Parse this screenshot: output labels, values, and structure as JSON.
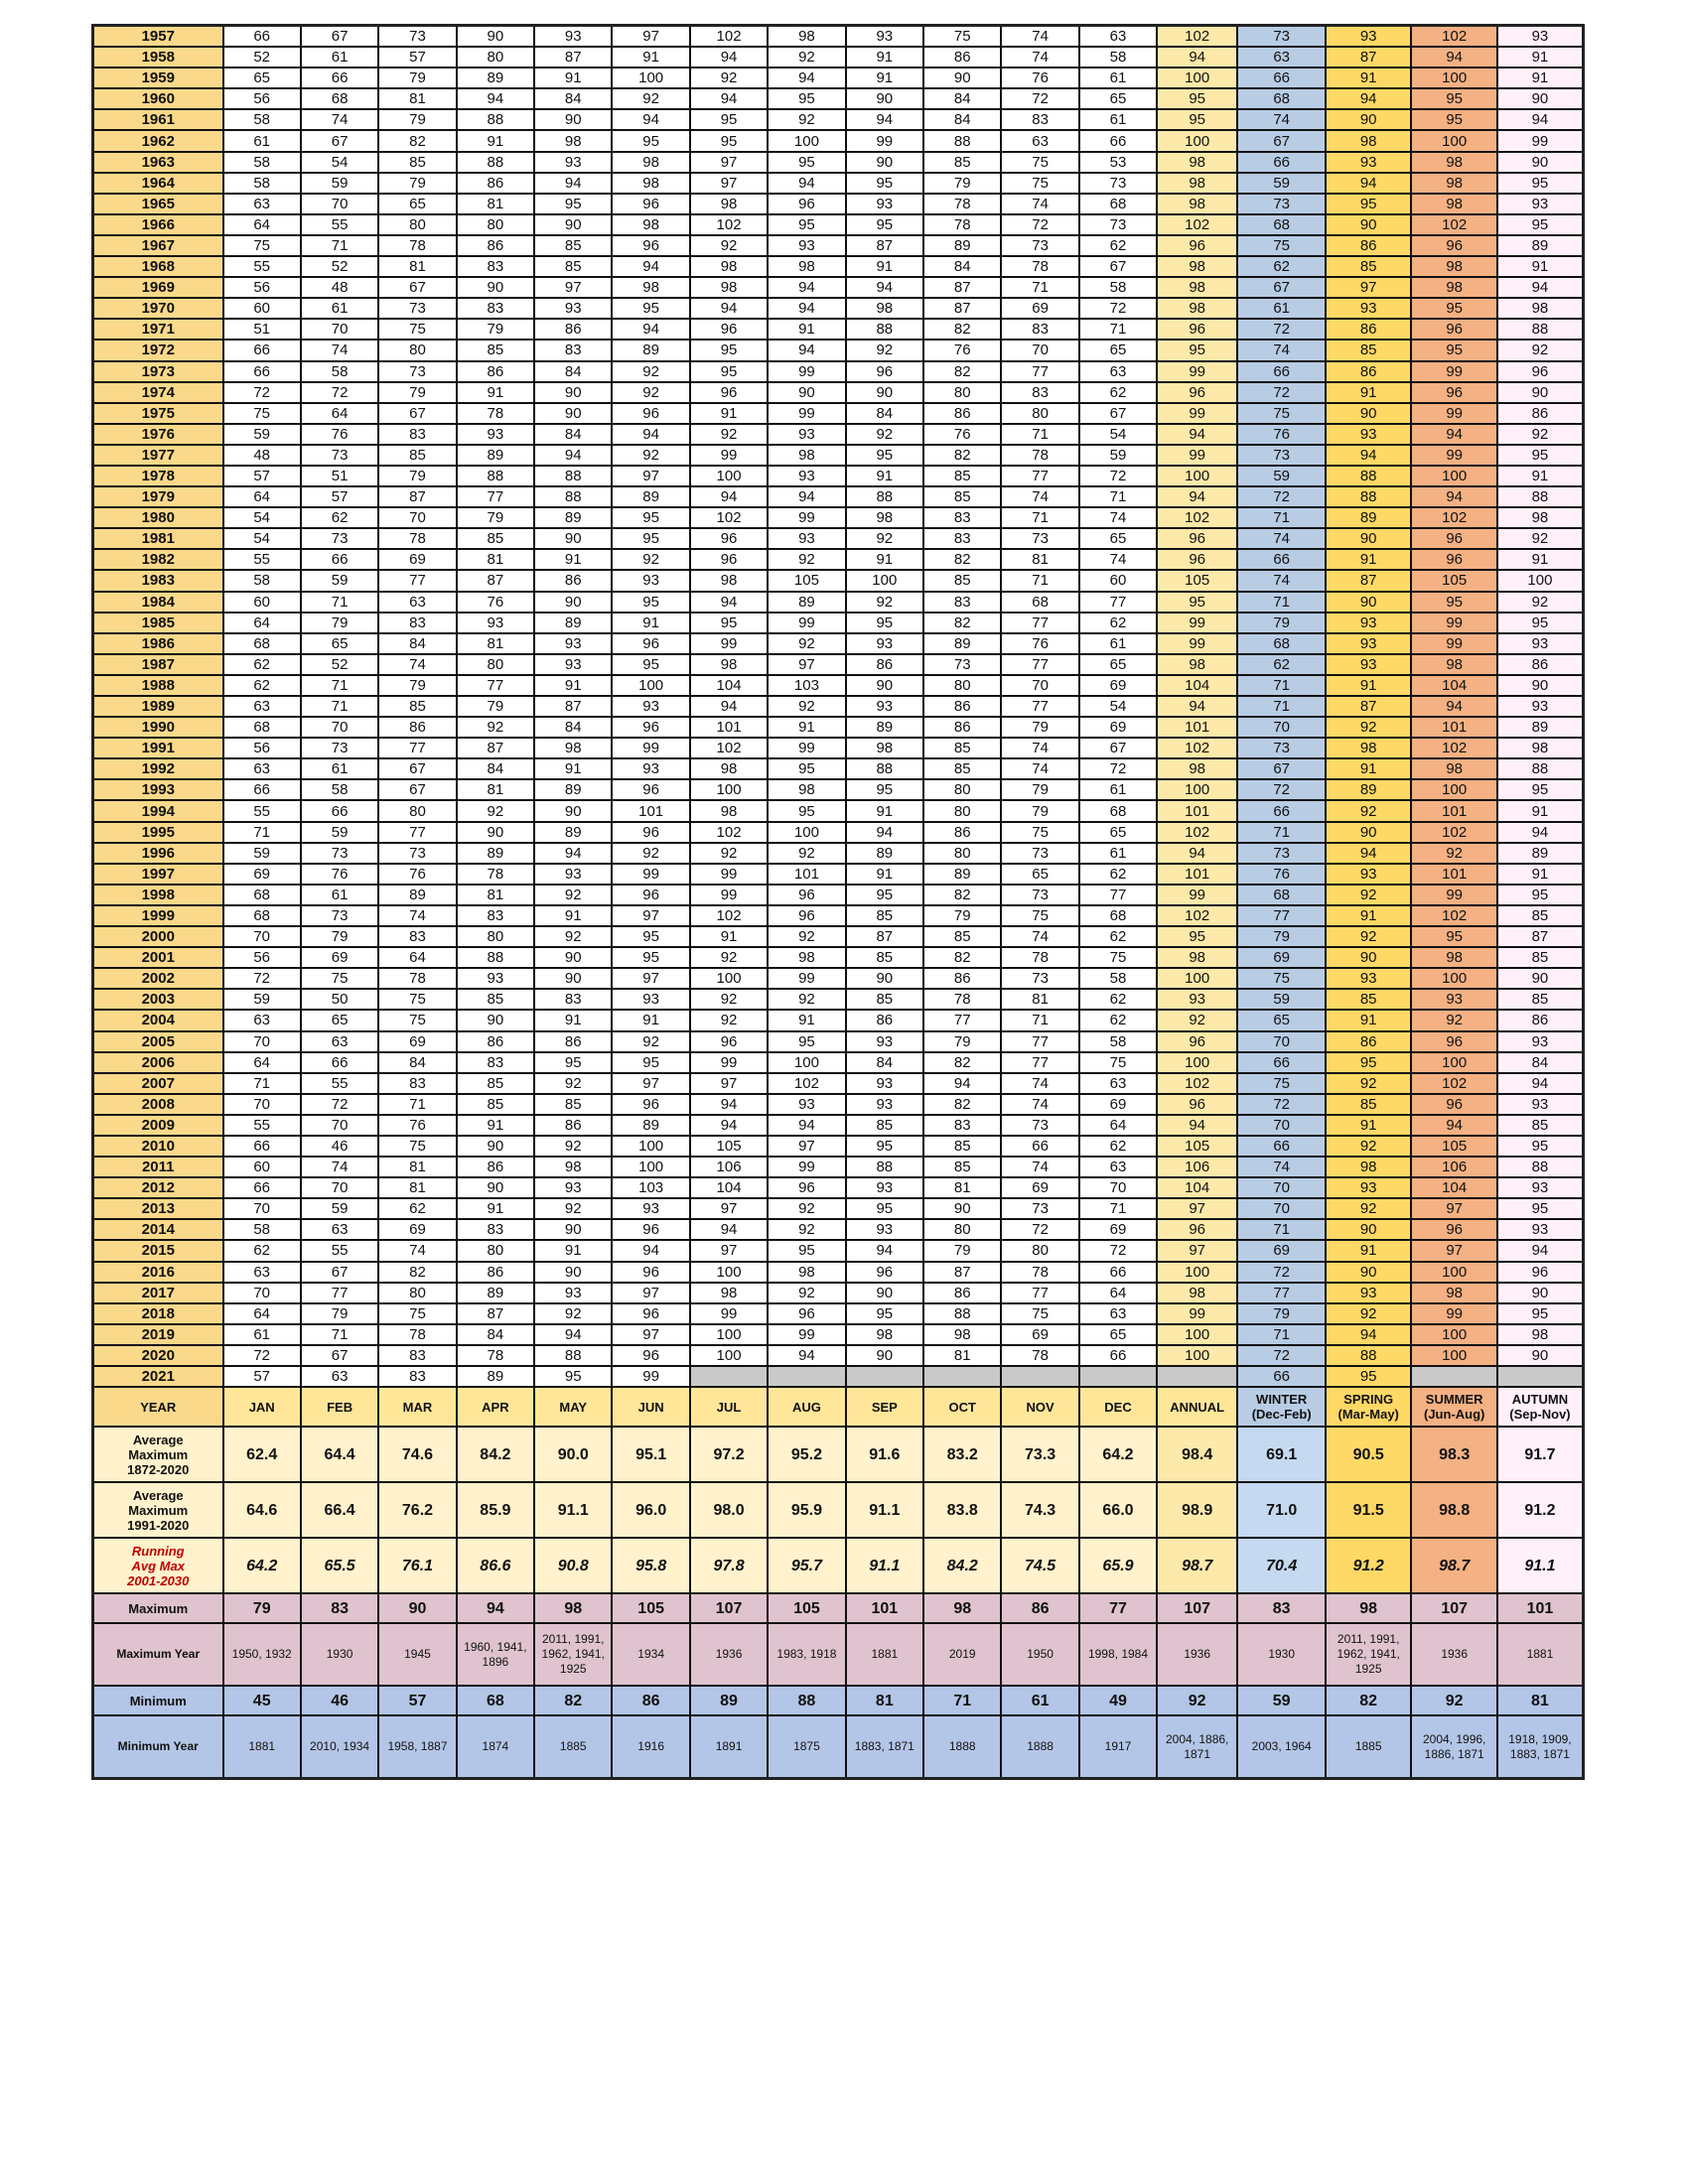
{
  "table": {
    "header": [
      "YEAR",
      "JAN",
      "FEB",
      "MAR",
      "APR",
      "MAY",
      "JUN",
      "JUL",
      "AUG",
      "SEP",
      "OCT",
      "NOV",
      "DEC",
      "ANNUAL",
      "WINTER\n(Dec-Feb)",
      "SPRING\n(Mar-May)",
      "SUMMER\n(Jun-Aug)",
      "AUTUMN\n(Sep-Nov)"
    ],
    "rows": [
      [
        1957,
        66,
        67,
        73,
        90,
        93,
        97,
        102,
        98,
        93,
        75,
        74,
        63,
        102,
        73,
        93,
        102,
        93
      ],
      [
        1958,
        52,
        61,
        57,
        80,
        87,
        91,
        94,
        92,
        91,
        86,
        74,
        58,
        94,
        63,
        87,
        94,
        91
      ],
      [
        1959,
        65,
        66,
        79,
        89,
        91,
        100,
        92,
        94,
        91,
        90,
        76,
        61,
        100,
        66,
        91,
        100,
        91
      ],
      [
        1960,
        56,
        68,
        81,
        94,
        84,
        92,
        94,
        95,
        90,
        84,
        72,
        65,
        95,
        68,
        94,
        95,
        90
      ],
      [
        1961,
        58,
        74,
        79,
        88,
        90,
        94,
        95,
        92,
        94,
        84,
        83,
        61,
        95,
        74,
        90,
        95,
        94
      ],
      [
        1962,
        61,
        67,
        82,
        91,
        98,
        95,
        95,
        100,
        99,
        88,
        63,
        66,
        100,
        67,
        98,
        100,
        99
      ],
      [
        1963,
        58,
        54,
        85,
        88,
        93,
        98,
        97,
        95,
        90,
        85,
        75,
        53,
        98,
        66,
        93,
        98,
        90
      ],
      [
        1964,
        58,
        59,
        79,
        86,
        94,
        98,
        97,
        94,
        95,
        79,
        75,
        73,
        98,
        59,
        94,
        98,
        95
      ],
      [
        1965,
        63,
        70,
        65,
        81,
        95,
        96,
        98,
        96,
        93,
        78,
        74,
        68,
        98,
        73,
        95,
        98,
        93
      ],
      [
        1966,
        64,
        55,
        80,
        80,
        90,
        98,
        102,
        95,
        95,
        78,
        72,
        73,
        102,
        68,
        90,
        102,
        95
      ],
      [
        1967,
        75,
        71,
        78,
        86,
        85,
        96,
        92,
        93,
        87,
        89,
        73,
        62,
        96,
        75,
        86,
        96,
        89
      ],
      [
        1968,
        55,
        52,
        81,
        83,
        85,
        94,
        98,
        98,
        91,
        84,
        78,
        67,
        98,
        62,
        85,
        98,
        91
      ],
      [
        1969,
        56,
        48,
        67,
        90,
        97,
        98,
        98,
        94,
        94,
        87,
        71,
        58,
        98,
        67,
        97,
        98,
        94
      ],
      [
        1970,
        60,
        61,
        73,
        83,
        93,
        95,
        94,
        94,
        98,
        87,
        69,
        72,
        98,
        61,
        93,
        95,
        98
      ],
      [
        1971,
        51,
        70,
        75,
        79,
        86,
        94,
        96,
        91,
        88,
        82,
        83,
        71,
        96,
        72,
        86,
        96,
        88
      ],
      [
        1972,
        66,
        74,
        80,
        85,
        83,
        89,
        95,
        94,
        92,
        76,
        70,
        65,
        95,
        74,
        85,
        95,
        92
      ],
      [
        1973,
        66,
        58,
        73,
        86,
        84,
        92,
        95,
        99,
        96,
        82,
        77,
        63,
        99,
        66,
        86,
        99,
        96
      ],
      [
        1974,
        72,
        72,
        79,
        91,
        90,
        92,
        96,
        90,
        90,
        80,
        83,
        62,
        96,
        72,
        91,
        96,
        90
      ],
      [
        1975,
        75,
        64,
        67,
        78,
        90,
        96,
        91,
        99,
        84,
        86,
        80,
        67,
        99,
        75,
        90,
        99,
        86
      ],
      [
        1976,
        59,
        76,
        83,
        93,
        84,
        94,
        92,
        93,
        92,
        76,
        71,
        54,
        94,
        76,
        93,
        94,
        92
      ],
      [
        1977,
        48,
        73,
        85,
        89,
        94,
        92,
        99,
        98,
        95,
        82,
        78,
        59,
        99,
        73,
        94,
        99,
        95
      ],
      [
        1978,
        57,
        51,
        79,
        88,
        88,
        97,
        100,
        93,
        91,
        85,
        77,
        72,
        100,
        59,
        88,
        100,
        91
      ],
      [
        1979,
        64,
        57,
        87,
        77,
        88,
        89,
        94,
        94,
        88,
        85,
        74,
        71,
        94,
        72,
        88,
        94,
        88
      ],
      [
        1980,
        54,
        62,
        70,
        79,
        89,
        95,
        102,
        99,
        98,
        83,
        71,
        74,
        102,
        71,
        89,
        102,
        98
      ],
      [
        1981,
        54,
        73,
        78,
        85,
        90,
        95,
        96,
        93,
        92,
        83,
        73,
        65,
        96,
        74,
        90,
        96,
        92
      ],
      [
        1982,
        55,
        66,
        69,
        81,
        91,
        92,
        96,
        92,
        91,
        82,
        81,
        74,
        96,
        66,
        91,
        96,
        91
      ],
      [
        1983,
        58,
        59,
        77,
        87,
        86,
        93,
        98,
        105,
        100,
        85,
        71,
        60,
        105,
        74,
        87,
        105,
        100
      ],
      [
        1984,
        60,
        71,
        63,
        76,
        90,
        95,
        94,
        89,
        92,
        83,
        68,
        77,
        95,
        71,
        90,
        95,
        92
      ],
      [
        1985,
        64,
        79,
        83,
        93,
        89,
        91,
        95,
        99,
        95,
        82,
        77,
        62,
        99,
        79,
        93,
        99,
        95
      ],
      [
        1986,
        68,
        65,
        84,
        81,
        93,
        96,
        99,
        92,
        93,
        89,
        76,
        61,
        99,
        68,
        93,
        99,
        93
      ],
      [
        1987,
        62,
        52,
        74,
        80,
        93,
        95,
        98,
        97,
        86,
        73,
        77,
        65,
        98,
        62,
        93,
        98,
        86
      ],
      [
        1988,
        62,
        71,
        79,
        77,
        91,
        100,
        104,
        103,
        90,
        80,
        70,
        69,
        104,
        71,
        91,
        104,
        90
      ],
      [
        1989,
        63,
        71,
        85,
        79,
        87,
        93,
        94,
        92,
        93,
        86,
        77,
        54,
        94,
        71,
        87,
        94,
        93
      ],
      [
        1990,
        68,
        70,
        86,
        92,
        84,
        96,
        101,
        91,
        89,
        86,
        79,
        69,
        101,
        70,
        92,
        101,
        89
      ],
      [
        1991,
        56,
        73,
        77,
        87,
        98,
        99,
        102,
        99,
        98,
        85,
        74,
        67,
        102,
        73,
        98,
        102,
        98
      ],
      [
        1992,
        63,
        61,
        67,
        84,
        91,
        93,
        98,
        95,
        88,
        85,
        74,
        72,
        98,
        67,
        91,
        98,
        88
      ],
      [
        1993,
        66,
        58,
        67,
        81,
        89,
        96,
        100,
        98,
        95,
        80,
        79,
        61,
        100,
        72,
        89,
        100,
        95
      ],
      [
        1994,
        55,
        66,
        80,
        92,
        90,
        101,
        98,
        95,
        91,
        80,
        79,
        68,
        101,
        66,
        92,
        101,
        91
      ],
      [
        1995,
        71,
        59,
        77,
        90,
        89,
        96,
        102,
        100,
        94,
        86,
        75,
        65,
        102,
        71,
        90,
        102,
        94
      ],
      [
        1996,
        59,
        73,
        73,
        89,
        94,
        92,
        92,
        92,
        89,
        80,
        73,
        61,
        94,
        73,
        94,
        92,
        89
      ],
      [
        1997,
        69,
        76,
        76,
        78,
        93,
        99,
        99,
        101,
        91,
        89,
        65,
        62,
        101,
        76,
        93,
        101,
        91
      ],
      [
        1998,
        68,
        61,
        89,
        81,
        92,
        96,
        99,
        96,
        95,
        82,
        73,
        77,
        99,
        68,
        92,
        99,
        95
      ],
      [
        1999,
        68,
        73,
        74,
        83,
        91,
        97,
        102,
        96,
        85,
        79,
        75,
        68,
        102,
        77,
        91,
        102,
        85
      ],
      [
        2000,
        70,
        79,
        83,
        80,
        92,
        95,
        91,
        92,
        87,
        85,
        74,
        62,
        95,
        79,
        92,
        95,
        87
      ],
      [
        2001,
        56,
        69,
        64,
        88,
        90,
        95,
        92,
        98,
        85,
        82,
        78,
        75,
        98,
        69,
        90,
        98,
        85
      ],
      [
        2002,
        72,
        75,
        78,
        93,
        90,
        97,
        100,
        99,
        90,
        86,
        73,
        58,
        100,
        75,
        93,
        100,
        90
      ],
      [
        2003,
        59,
        50,
        75,
        85,
        83,
        93,
        92,
        92,
        85,
        78,
        81,
        62,
        93,
        59,
        85,
        93,
        85
      ],
      [
        2004,
        63,
        65,
        75,
        90,
        91,
        91,
        92,
        91,
        86,
        77,
        71,
        62,
        92,
        65,
        91,
        92,
        86
      ],
      [
        2005,
        70,
        63,
        69,
        86,
        86,
        92,
        96,
        95,
        93,
        79,
        77,
        58,
        96,
        70,
        86,
        96,
        93
      ],
      [
        2006,
        64,
        66,
        84,
        83,
        95,
        95,
        99,
        100,
        84,
        82,
        77,
        75,
        100,
        66,
        95,
        100,
        84
      ],
      [
        2007,
        71,
        55,
        83,
        85,
        92,
        97,
        97,
        102,
        93,
        94,
        74,
        63,
        102,
        75,
        92,
        102,
        94
      ],
      [
        2008,
        70,
        72,
        71,
        85,
        85,
        96,
        94,
        93,
        93,
        82,
        74,
        69,
        96,
        72,
        85,
        96,
        93
      ],
      [
        2009,
        55,
        70,
        76,
        91,
        86,
        89,
        94,
        94,
        85,
        83,
        73,
        64,
        94,
        70,
        91,
        94,
        85
      ],
      [
        2010,
        66,
        46,
        75,
        90,
        92,
        100,
        105,
        97,
        95,
        85,
        66,
        62,
        105,
        66,
        92,
        105,
        95
      ],
      [
        2011,
        60,
        74,
        81,
        86,
        98,
        100,
        106,
        99,
        88,
        85,
        74,
        63,
        106,
        74,
        98,
        106,
        88
      ],
      [
        2012,
        66,
        70,
        81,
        90,
        93,
        103,
        104,
        96,
        93,
        81,
        69,
        70,
        104,
        70,
        93,
        104,
        93
      ],
      [
        2013,
        70,
        59,
        62,
        91,
        92,
        93,
        97,
        92,
        95,
        90,
        73,
        71,
        97,
        70,
        92,
        97,
        95
      ],
      [
        2014,
        58,
        63,
        69,
        83,
        90,
        96,
        94,
        92,
        93,
        80,
        72,
        69,
        96,
        71,
        90,
        96,
        93
      ],
      [
        2015,
        62,
        55,
        74,
        80,
        91,
        94,
        97,
        95,
        94,
        79,
        80,
        72,
        97,
        69,
        91,
        97,
        94
      ],
      [
        2016,
        63,
        67,
        82,
        86,
        90,
        96,
        100,
        98,
        96,
        87,
        78,
        66,
        100,
        72,
        90,
        100,
        96
      ],
      [
        2017,
        70,
        77,
        80,
        89,
        93,
        97,
        98,
        92,
        90,
        86,
        77,
        64,
        98,
        77,
        93,
        98,
        90
      ],
      [
        2018,
        64,
        79,
        75,
        87,
        92,
        96,
        99,
        96,
        95,
        88,
        75,
        63,
        99,
        79,
        92,
        99,
        95
      ],
      [
        2019,
        61,
        71,
        78,
        84,
        94,
        97,
        100,
        99,
        98,
        98,
        69,
        65,
        100,
        71,
        94,
        100,
        98
      ],
      [
        2020,
        72,
        67,
        83,
        78,
        88,
        96,
        100,
        94,
        90,
        81,
        78,
        66,
        100,
        72,
        88,
        100,
        90
      ],
      [
        2021,
        57,
        63,
        83,
        89,
        95,
        99,
        null,
        null,
        null,
        null,
        null,
        null,
        null,
        66,
        95,
        null,
        null
      ]
    ],
    "stats": [
      {
        "label": "Average\nMaximum\n1872-2020",
        "values": [
          "62.4",
          "64.4",
          "74.6",
          "84.2",
          "90.0",
          "95.1",
          "97.2",
          "95.2",
          "91.6",
          "83.2",
          "73.3",
          "64.2",
          "98.4",
          "69.1",
          "90.5",
          "98.3",
          "91.7"
        ]
      },
      {
        "label": "Average\nMaximum\n1991-2020",
        "values": [
          "64.6",
          "66.4",
          "76.2",
          "85.9",
          "91.1",
          "96.0",
          "98.0",
          "95.9",
          "91.1",
          "83.8",
          "74.3",
          "66.0",
          "98.9",
          "71.0",
          "91.5",
          "98.8",
          "91.2"
        ]
      },
      {
        "label": "Running\nAvg Max\n2001-2030",
        "values": [
          "64.2",
          "65.5",
          "76.1",
          "86.6",
          "90.8",
          "95.8",
          "97.8",
          "95.7",
          "91.1",
          "84.2",
          "74.5",
          "65.9",
          "98.7",
          "70.4",
          "91.2",
          "98.7",
          "91.1"
        ]
      },
      {
        "label": "Maximum",
        "values": [
          "79",
          "83",
          "90",
          "94",
          "98",
          "105",
          "107",
          "105",
          "101",
          "98",
          "86",
          "77",
          "107",
          "83",
          "98",
          "107",
          "101"
        ]
      },
      {
        "label": "Maximum Year",
        "values": [
          "1950, 1932",
          "1930",
          "1945",
          "1960, 1941, 1896",
          "2011, 1991, 1962, 1941, 1925",
          "1934",
          "1936",
          "1983, 1918",
          "1881",
          "2019",
          "1950",
          "1998, 1984",
          "1936",
          "1930",
          "2011, 1991, 1962, 1941, 1925",
          "1936",
          "1881"
        ]
      },
      {
        "label": "Minimum",
        "values": [
          "45",
          "46",
          "57",
          "68",
          "82",
          "86",
          "89",
          "88",
          "81",
          "71",
          "61",
          "49",
          "92",
          "59",
          "82",
          "92",
          "81"
        ]
      },
      {
        "label": "Minimum Year",
        "values": [
          "1881",
          "2010, 1934",
          "1958, 1887",
          "1874",
          "1885",
          "1916",
          "1891",
          "1875",
          "1883, 1871",
          "1888",
          "1888",
          "1917",
          "2004, 1886, 1871",
          "2003, 1964",
          "1885",
          "2004, 1996, 1886, 1871",
          "1918, 1909, 1883, 1871"
        ]
      }
    ]
  }
}
